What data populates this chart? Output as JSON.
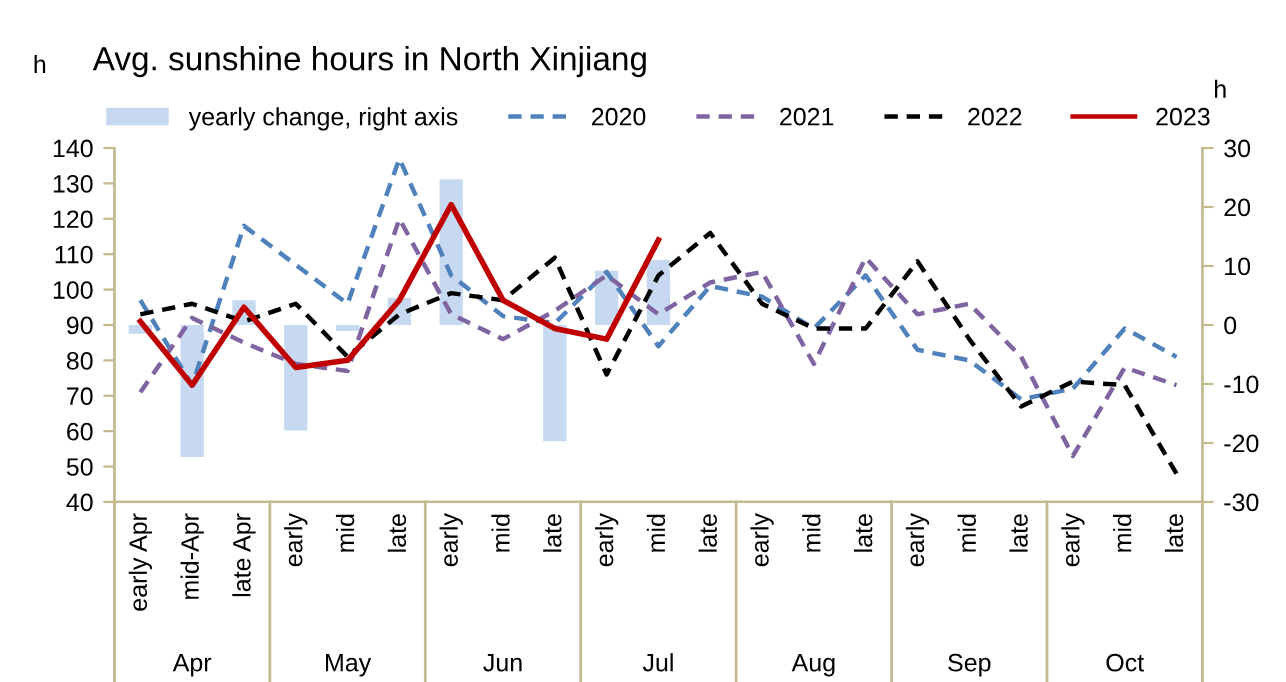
{
  "chart_data": {
    "type": "line",
    "title": "Avg. sunshine hours in North Xinjiang",
    "ylabel": "h",
    "y2label": "h",
    "categories": [
      "early Apr",
      "mid-Apr",
      "late Apr",
      "early",
      "mid",
      "late",
      "early",
      "mid",
      "late",
      "early",
      "mid",
      "late",
      "early",
      "mid",
      "late",
      "early",
      "mid",
      "late",
      "early",
      "mid",
      "late"
    ],
    "annotations": [
      "Apr",
      "May",
      "Jun",
      "Jul",
      "Aug",
      "Sep",
      "Oct"
    ],
    "series": [
      {
        "name": "yearly change, right axis",
        "type": "bar",
        "axis": "y2",
        "color": "#c6d9f1",
        "values": [
          -1.5,
          -22.4,
          4.2,
          -17.9,
          -1,
          4.6,
          24.7,
          0,
          -19.7,
          9.2,
          11,
          null,
          null,
          null,
          null,
          null,
          null,
          null,
          null,
          null,
          null
        ]
      },
      {
        "name": "2020",
        "color": "#4f81bd",
        "line_style": "dashed",
        "values": [
          97,
          73,
          118,
          107,
          96,
          137,
          104,
          92.5,
          90.5,
          105,
          84,
          101,
          98,
          89,
          104,
          83,
          80,
          69,
          72,
          89,
          81
        ]
      },
      {
        "name": "2021",
        "color": "#8064a2",
        "line_style": "dashed",
        "values": [
          71,
          92,
          85,
          79,
          77,
          120,
          93,
          86,
          94,
          104,
          93,
          102,
          105,
          79,
          109,
          93,
          96,
          81,
          53,
          78,
          73
        ]
      },
      {
        "name": "2022",
        "color": "#000000",
        "line_style": "dashed",
        "values": [
          93,
          96,
          91,
          96,
          81,
          93,
          99,
          97,
          109,
          76,
          104,
          116,
          96,
          89,
          89,
          108,
          86,
          67,
          74,
          73,
          48
        ]
      },
      {
        "name": "2023",
        "color": "#c00000",
        "line_style": "solid",
        "values": [
          91,
          73,
          95,
          78,
          80,
          97,
          124,
          97,
          89,
          86,
          114,
          null,
          null,
          null,
          null,
          null,
          null,
          null,
          null,
          null,
          null
        ]
      }
    ],
    "ylim": [
      40,
      140
    ],
    "yticks": [
      40,
      50,
      60,
      70,
      80,
      90,
      100,
      110,
      120,
      130,
      140
    ],
    "y2lim": [
      -30,
      30
    ],
    "y2ticks": [
      -30,
      -20,
      -10,
      0,
      10,
      20,
      30
    ],
    "legend": "top",
    "grid": false,
    "marker": "none"
  }
}
